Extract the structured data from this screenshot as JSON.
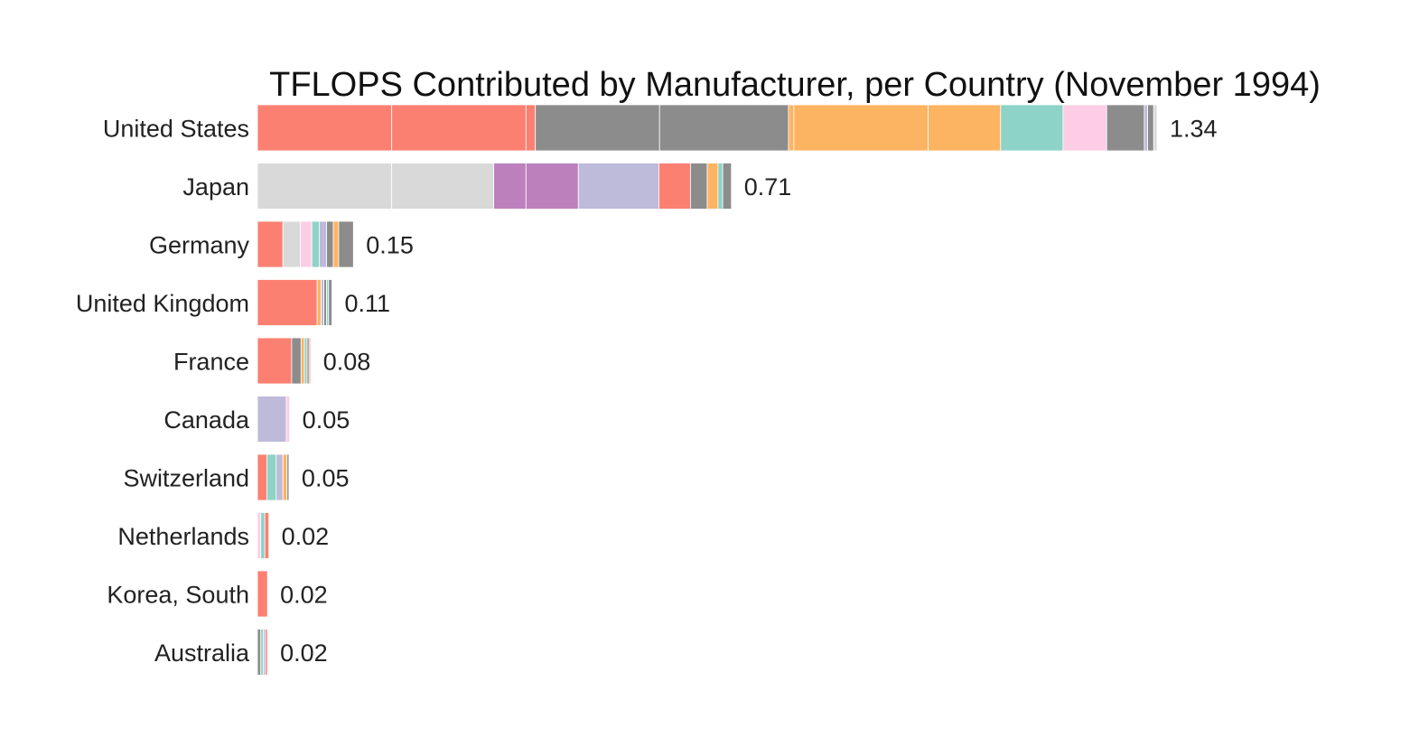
{
  "chart_data": {
    "type": "bar",
    "orientation": "horizontal",
    "stacked": true,
    "title": "TFLOPS Contributed by Manufacturer, per Country (November 1994)",
    "xlabel": "",
    "ylabel": "",
    "xlim": [
      0,
      1.34
    ],
    "grid": false,
    "legend": "none",
    "categories": [
      "United States",
      "Japan",
      "Germany",
      "United Kingdom",
      "France",
      "Canada",
      "Switzerland",
      "Netherlands",
      "Korea, South",
      "Australia"
    ],
    "totals": [
      "1.34",
      "0.71",
      "0.15",
      "0.11",
      "0.08",
      "0.05",
      "0.05",
      "0.02",
      "0.02",
      "0.02"
    ],
    "segments": [
      [
        {
          "value": 0.2,
          "color": "#fb8072"
        },
        {
          "value": 0.2,
          "color": "#fb8072"
        },
        {
          "value": 0.014,
          "color": "#fb8072"
        },
        {
          "value": 0.185,
          "color": "#8c8c8c"
        },
        {
          "value": 0.192,
          "color": "#8c8c8c"
        },
        {
          "value": 0.008,
          "color": "#fdb462"
        },
        {
          "value": 0.2,
          "color": "#fdb462"
        },
        {
          "value": 0.108,
          "color": "#fdb462"
        },
        {
          "value": 0.093,
          "color": "#8dd3c7"
        },
        {
          "value": 0.065,
          "color": "#fccde5"
        },
        {
          "value": 0.056,
          "color": "#8c8c8c"
        },
        {
          "value": 0.005,
          "color": "#bebada"
        },
        {
          "value": 0.009,
          "color": "#8c8c8c"
        },
        {
          "value": 0.005,
          "color": "#d9d9d9"
        }
      ],
      [
        {
          "value": 0.2,
          "color": "#d9d9d9"
        },
        {
          "value": 0.152,
          "color": "#d9d9d9"
        },
        {
          "value": 0.048,
          "color": "#bc80bd"
        },
        {
          "value": 0.078,
          "color": "#bc80bd"
        },
        {
          "value": 0.12,
          "color": "#bebada"
        },
        {
          "value": 0.047,
          "color": "#fb8072"
        },
        {
          "value": 0.025,
          "color": "#8c8c8c"
        },
        {
          "value": 0.016,
          "color": "#fdb462"
        },
        {
          "value": 0.007,
          "color": "#8dd3c7"
        },
        {
          "value": 0.013,
          "color": "#8c8c8c"
        }
      ],
      [
        {
          "value": 0.038,
          "color": "#fb8072"
        },
        {
          "value": 0.026,
          "color": "#d9d9d9"
        },
        {
          "value": 0.017,
          "color": "#fccde5"
        },
        {
          "value": 0.011,
          "color": "#8dd3c7"
        },
        {
          "value": 0.011,
          "color": "#bebada"
        },
        {
          "value": 0.01,
          "color": "#8c8c8c"
        },
        {
          "value": 0.008,
          "color": "#fdb462"
        },
        {
          "value": 0.022,
          "color": "#8c8c8c"
        }
      ],
      [
        {
          "value": 0.089,
          "color": "#fb8072"
        },
        {
          "value": 0.006,
          "color": "#fdb462"
        },
        {
          "value": 0.004,
          "color": "#bebada"
        },
        {
          "value": 0.004,
          "color": "#8c8c8c"
        },
        {
          "value": 0.003,
          "color": "#8dd3c7"
        },
        {
          "value": 0.005,
          "color": "#8c8c8c"
        }
      ],
      [
        {
          "value": 0.051,
          "color": "#fb8072"
        },
        {
          "value": 0.014,
          "color": "#8c8c8c"
        },
        {
          "value": 0.005,
          "color": "#fdb462"
        },
        {
          "value": 0.004,
          "color": "#8dd3c7"
        },
        {
          "value": 0.003,
          "color": "#8c8c8c"
        },
        {
          "value": 0.002,
          "color": "#fb8072"
        }
      ],
      [
        {
          "value": 0.043,
          "color": "#bebada"
        },
        {
          "value": 0.005,
          "color": "#fccde5"
        }
      ],
      [
        {
          "value": 0.014,
          "color": "#fb8072"
        },
        {
          "value": 0.014,
          "color": "#8dd3c7"
        },
        {
          "value": 0.01,
          "color": "#bebada"
        },
        {
          "value": 0.006,
          "color": "#fdb462"
        },
        {
          "value": 0.003,
          "color": "#8c8c8c"
        }
      ],
      [
        {
          "value": 0.005,
          "color": "#fccde5"
        },
        {
          "value": 0.006,
          "color": "#8dd3c7"
        },
        {
          "value": 0.006,
          "color": "#fb8072"
        }
      ],
      [
        {
          "value": 0.015,
          "color": "#fb8072"
        }
      ],
      [
        {
          "value": 0.005,
          "color": "#8c8c8c"
        },
        {
          "value": 0.004,
          "color": "#8dd3c7"
        },
        {
          "value": 0.003,
          "color": "#bebada"
        },
        {
          "value": 0.003,
          "color": "#fb8072"
        }
      ]
    ]
  }
}
